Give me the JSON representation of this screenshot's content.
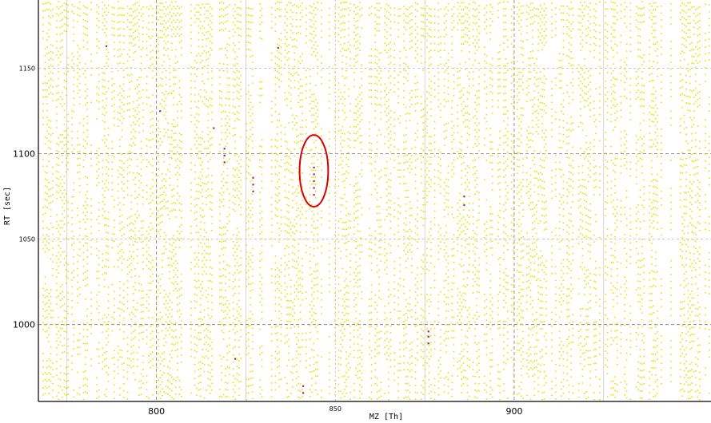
{
  "chart_data": {
    "type": "scatter",
    "title": "",
    "xlabel": "MZ [Th]",
    "ylabel": "RT [sec]",
    "xlim": [
      767,
      955
    ],
    "ylim": [
      955,
      1190
    ],
    "x_ticks": [
      {
        "value": 800,
        "label": "800",
        "major": true
      },
      {
        "value": 850,
        "label": "850",
        "major": false
      },
      {
        "value": 900,
        "label": "900",
        "major": true
      }
    ],
    "y_ticks": [
      {
        "value": 1000,
        "label": "1000",
        "major": true
      },
      {
        "value": 1050,
        "label": "1050",
        "major": false
      },
      {
        "value": 1100,
        "label": "1100",
        "major": true
      },
      {
        "value": 1150,
        "label": "1150",
        "major": false
      }
    ],
    "minor_x_gridlines": [
      775,
      825,
      875,
      925
    ],
    "grid": true,
    "background_points": {
      "color": "#e8e000",
      "description": "dense field of small yellow features"
    },
    "highlighted_points": [
      {
        "x": 819,
        "y": 1103,
        "color": "#6a2fb0"
      },
      {
        "x": 819,
        "y": 1099,
        "color": "#6a2fb0"
      },
      {
        "x": 819,
        "y": 1095,
        "color": "#c02040"
      },
      {
        "x": 827,
        "y": 1086,
        "color": "#c02040"
      },
      {
        "x": 827,
        "y": 1082,
        "color": "#c02040"
      },
      {
        "x": 827,
        "y": 1078,
        "color": "#c02040"
      },
      {
        "x": 844,
        "y": 1092,
        "color": "#6a2fb0"
      },
      {
        "x": 844,
        "y": 1088,
        "color": "#6a2fb0"
      },
      {
        "x": 844,
        "y": 1084,
        "color": "#c02040"
      },
      {
        "x": 844,
        "y": 1080,
        "color": "#6a2fb0"
      },
      {
        "x": 844,
        "y": 1076,
        "color": "#c02040"
      },
      {
        "x": 816,
        "y": 1115,
        "color": "#c02040"
      },
      {
        "x": 834,
        "y": 1162,
        "color": "#c02040"
      },
      {
        "x": 786,
        "y": 1163,
        "color": "#c02040"
      },
      {
        "x": 886,
        "y": 1075,
        "color": "#c02040"
      },
      {
        "x": 886,
        "y": 1070,
        "color": "#c02040"
      },
      {
        "x": 876,
        "y": 996,
        "color": "#c02040"
      },
      {
        "x": 876,
        "y": 993,
        "color": "#c02040"
      },
      {
        "x": 876,
        "y": 989,
        "color": "#c02040"
      },
      {
        "x": 841,
        "y": 964,
        "color": "#c02040"
      },
      {
        "x": 841,
        "y": 960,
        "color": "#c02040"
      },
      {
        "x": 822,
        "y": 980,
        "color": "#c02040"
      },
      {
        "x": 801,
        "y": 1125,
        "color": "#c02040"
      }
    ],
    "annotation": {
      "shape": "ellipse",
      "color": "#dd0000",
      "center": [
        844,
        1090
      ],
      "rx": 4,
      "ry": 21
    },
    "colors": {
      "major_grid": "#777777",
      "minor_grid": "#bbbbbb",
      "axis": "#000000"
    }
  }
}
